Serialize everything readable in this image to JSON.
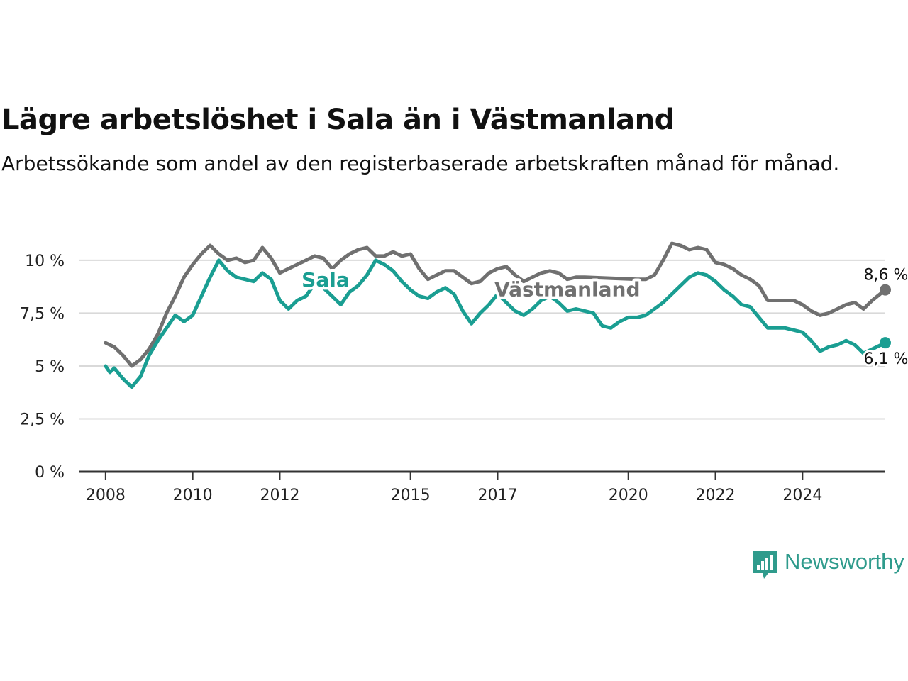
{
  "title": "Lägre arbetslöshet i Sala än i Västmanland",
  "subtitle": "Arbetssökande som andel av den registerbaserade arbetskraften månad för månad.",
  "logo": {
    "text": "Newsworthy",
    "icon": "bar-chart-speech-bubble-icon"
  },
  "colors": {
    "sala": "#1a9e92",
    "vastmanland": "#707070",
    "grid": "#d9d9d9",
    "axis": "#333333"
  },
  "chart_data": {
    "type": "line",
    "x_unit": "year",
    "xlim": [
      2007.4,
      2025.9
    ],
    "ylim": [
      0,
      10.5
    ],
    "yticks": [
      {
        "value": 0,
        "label": "0 %"
      },
      {
        "value": 2.5,
        "label": "2,5 %"
      },
      {
        "value": 5,
        "label": "5 %"
      },
      {
        "value": 7.5,
        "label": "7,5 %"
      },
      {
        "value": 10,
        "label": "10 %"
      }
    ],
    "xticks": [
      {
        "value": 2008,
        "label": "2008"
      },
      {
        "value": 2010,
        "label": "2010"
      },
      {
        "value": 2012,
        "label": "2012"
      },
      {
        "value": 2015,
        "label": "2015"
      },
      {
        "value": 2017,
        "label": "2017"
      },
      {
        "value": 2020,
        "label": "2020"
      },
      {
        "value": 2022,
        "label": "2022"
      },
      {
        "value": 2024,
        "label": "2024"
      }
    ],
    "grid": true,
    "series": [
      {
        "name": "Västmanland",
        "color": "#707070",
        "label_x": 2018.6,
        "label_y": 8.6,
        "end_label": "8,6 %",
        "points": [
          [
            2008.0,
            6.1
          ],
          [
            2008.2,
            5.9
          ],
          [
            2008.4,
            5.5
          ],
          [
            2008.6,
            5.0
          ],
          [
            2008.8,
            5.3
          ],
          [
            2009.0,
            5.8
          ],
          [
            2009.2,
            6.5
          ],
          [
            2009.4,
            7.5
          ],
          [
            2009.6,
            8.3
          ],
          [
            2009.8,
            9.2
          ],
          [
            2010.0,
            9.8
          ],
          [
            2010.2,
            10.3
          ],
          [
            2010.4,
            10.7
          ],
          [
            2010.6,
            10.3
          ],
          [
            2010.8,
            10.0
          ],
          [
            2011.0,
            10.1
          ],
          [
            2011.2,
            9.9
          ],
          [
            2011.4,
            10.0
          ],
          [
            2011.6,
            10.6
          ],
          [
            2011.8,
            10.1
          ],
          [
            2012.0,
            9.4
          ],
          [
            2012.2,
            9.6
          ],
          [
            2012.4,
            9.8
          ],
          [
            2012.6,
            10.0
          ],
          [
            2012.8,
            10.2
          ],
          [
            2013.0,
            10.1
          ],
          [
            2013.2,
            9.6
          ],
          [
            2013.4,
            10.0
          ],
          [
            2013.6,
            10.3
          ],
          [
            2013.8,
            10.5
          ],
          [
            2014.0,
            10.6
          ],
          [
            2014.2,
            10.2
          ],
          [
            2014.4,
            10.2
          ],
          [
            2014.6,
            10.4
          ],
          [
            2014.8,
            10.2
          ],
          [
            2015.0,
            10.3
          ],
          [
            2015.2,
            9.6
          ],
          [
            2015.4,
            9.1
          ],
          [
            2015.6,
            9.3
          ],
          [
            2015.8,
            9.5
          ],
          [
            2016.0,
            9.5
          ],
          [
            2016.2,
            9.2
          ],
          [
            2016.4,
            8.9
          ],
          [
            2016.6,
            9.0
          ],
          [
            2016.8,
            9.4
          ],
          [
            2017.0,
            9.6
          ],
          [
            2017.2,
            9.7
          ],
          [
            2017.4,
            9.3
          ],
          [
            2017.6,
            9.0
          ],
          [
            2017.8,
            9.2
          ],
          [
            2018.0,
            9.4
          ],
          [
            2018.2,
            9.5
          ],
          [
            2018.4,
            9.4
          ],
          [
            2018.6,
            9.1
          ],
          [
            2018.8,
            9.2
          ],
          [
            2019.0,
            9.2
          ],
          [
            2020.2,
            9.1
          ],
          [
            2020.4,
            9.1
          ],
          [
            2020.6,
            9.3
          ],
          [
            2020.8,
            10.0
          ],
          [
            2021.0,
            10.8
          ],
          [
            2021.2,
            10.7
          ],
          [
            2021.4,
            10.5
          ],
          [
            2021.6,
            10.6
          ],
          [
            2021.8,
            10.5
          ],
          [
            2022.0,
            9.9
          ],
          [
            2022.2,
            9.8
          ],
          [
            2022.4,
            9.6
          ],
          [
            2022.6,
            9.3
          ],
          [
            2022.8,
            9.1
          ],
          [
            2023.0,
            8.8
          ],
          [
            2023.2,
            8.1
          ],
          [
            2023.4,
            8.1
          ],
          [
            2023.6,
            8.1
          ],
          [
            2023.8,
            8.1
          ],
          [
            2024.0,
            7.9
          ],
          [
            2024.2,
            7.6
          ],
          [
            2024.4,
            7.4
          ],
          [
            2024.6,
            7.5
          ],
          [
            2024.8,
            7.7
          ],
          [
            2025.0,
            7.9
          ],
          [
            2025.2,
            8.0
          ],
          [
            2025.4,
            7.7
          ],
          [
            2025.6,
            8.1
          ],
          [
            2025.9,
            8.6
          ]
        ]
      },
      {
        "name": "Sala",
        "color": "#1a9e92",
        "label_x": 2013.05,
        "label_y": 9.05,
        "end_label": "6,1 %",
        "points": [
          [
            2008.0,
            5.0
          ],
          [
            2008.1,
            4.7
          ],
          [
            2008.2,
            4.9
          ],
          [
            2008.4,
            4.4
          ],
          [
            2008.6,
            4.0
          ],
          [
            2008.8,
            4.5
          ],
          [
            2009.0,
            5.5
          ],
          [
            2009.2,
            6.2
          ],
          [
            2009.4,
            6.8
          ],
          [
            2009.6,
            7.4
          ],
          [
            2009.8,
            7.1
          ],
          [
            2010.0,
            7.4
          ],
          [
            2010.2,
            8.3
          ],
          [
            2010.4,
            9.2
          ],
          [
            2010.6,
            10.0
          ],
          [
            2010.8,
            9.5
          ],
          [
            2011.0,
            9.2
          ],
          [
            2011.2,
            9.1
          ],
          [
            2011.4,
            9.0
          ],
          [
            2011.6,
            9.4
          ],
          [
            2011.8,
            9.1
          ],
          [
            2012.0,
            8.1
          ],
          [
            2012.2,
            7.7
          ],
          [
            2012.4,
            8.1
          ],
          [
            2012.6,
            8.3
          ],
          [
            2012.8,
            8.9
          ],
          [
            2013.0,
            8.7
          ],
          [
            2013.2,
            8.3
          ],
          [
            2013.4,
            7.9
          ],
          [
            2013.6,
            8.5
          ],
          [
            2013.8,
            8.8
          ],
          [
            2014.0,
            9.3
          ],
          [
            2014.2,
            10.0
          ],
          [
            2014.4,
            9.8
          ],
          [
            2014.6,
            9.5
          ],
          [
            2014.8,
            9.0
          ],
          [
            2015.0,
            8.6
          ],
          [
            2015.2,
            8.3
          ],
          [
            2015.4,
            8.2
          ],
          [
            2015.6,
            8.5
          ],
          [
            2015.8,
            8.7
          ],
          [
            2016.0,
            8.4
          ],
          [
            2016.2,
            7.6
          ],
          [
            2016.4,
            7.0
          ],
          [
            2016.6,
            7.5
          ],
          [
            2016.8,
            7.9
          ],
          [
            2017.0,
            8.4
          ],
          [
            2017.2,
            8.0
          ],
          [
            2017.4,
            7.6
          ],
          [
            2017.6,
            7.4
          ],
          [
            2017.8,
            7.7
          ],
          [
            2018.0,
            8.1
          ],
          [
            2018.2,
            8.3
          ],
          [
            2018.4,
            8.0
          ],
          [
            2018.6,
            7.6
          ],
          [
            2018.8,
            7.7
          ],
          [
            2019.0,
            7.6
          ],
          [
            2019.2,
            7.5
          ],
          [
            2019.4,
            6.9
          ],
          [
            2019.6,
            6.8
          ],
          [
            2019.8,
            7.1
          ],
          [
            2020.0,
            7.3
          ],
          [
            2020.2,
            7.3
          ],
          [
            2020.4,
            7.4
          ],
          [
            2020.6,
            7.7
          ],
          [
            2020.8,
            8.0
          ],
          [
            2021.0,
            8.4
          ],
          [
            2021.2,
            8.8
          ],
          [
            2021.4,
            9.2
          ],
          [
            2021.6,
            9.4
          ],
          [
            2021.8,
            9.3
          ],
          [
            2022.0,
            9.0
          ],
          [
            2022.2,
            8.6
          ],
          [
            2022.4,
            8.3
          ],
          [
            2022.6,
            7.9
          ],
          [
            2022.8,
            7.8
          ],
          [
            2023.0,
            7.3
          ],
          [
            2023.2,
            6.8
          ],
          [
            2023.4,
            6.8
          ],
          [
            2023.6,
            6.8
          ],
          [
            2023.8,
            6.7
          ],
          [
            2024.0,
            6.6
          ],
          [
            2024.2,
            6.2
          ],
          [
            2024.4,
            5.7
          ],
          [
            2024.6,
            5.9
          ],
          [
            2024.8,
            6.0
          ],
          [
            2025.0,
            6.2
          ],
          [
            2025.2,
            6.0
          ],
          [
            2025.4,
            5.6
          ],
          [
            2025.6,
            5.8
          ],
          [
            2025.9,
            6.1
          ]
        ]
      }
    ]
  }
}
